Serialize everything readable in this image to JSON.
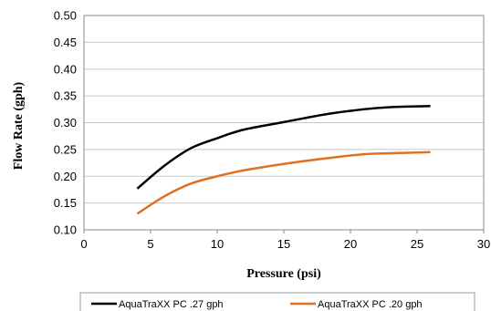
{
  "chart_data": {
    "type": "line",
    "title": "",
    "xlabel": "Pressure (psi)",
    "ylabel": "Flow Rate (gph)",
    "xlim": [
      0,
      30
    ],
    "ylim": [
      0.1,
      0.5
    ],
    "xticks": [
      "0",
      "5",
      "10",
      "15",
      "20",
      "25",
      "30"
    ],
    "yticks": [
      "0.10",
      "0.15",
      "0.20",
      "0.25",
      "0.30",
      "0.35",
      "0.40",
      "0.45",
      "0.50"
    ],
    "grid": "horizontal",
    "legend_position": "bottom",
    "series": [
      {
        "name": "AquaTraXX PC .27 gph",
        "color": "#000000",
        "points": [
          [
            4,
            0.177
          ],
          [
            6,
            0.219
          ],
          [
            8,
            0.252
          ],
          [
            10,
            0.271
          ],
          [
            12,
            0.287
          ],
          [
            15,
            0.301
          ],
          [
            18,
            0.315
          ],
          [
            21,
            0.325
          ],
          [
            23,
            0.329
          ],
          [
            26,
            0.331
          ]
        ]
      },
      {
        "name": "AquaTraXX PC .20 gph",
        "color": "#E07020",
        "points": [
          [
            4,
            0.13
          ],
          [
            6,
            0.162
          ],
          [
            8,
            0.186
          ],
          [
            10,
            0.2
          ],
          [
            12,
            0.211
          ],
          [
            15,
            0.223
          ],
          [
            18,
            0.233
          ],
          [
            21,
            0.241
          ],
          [
            23,
            0.243
          ],
          [
            26,
            0.245
          ]
        ]
      }
    ]
  }
}
